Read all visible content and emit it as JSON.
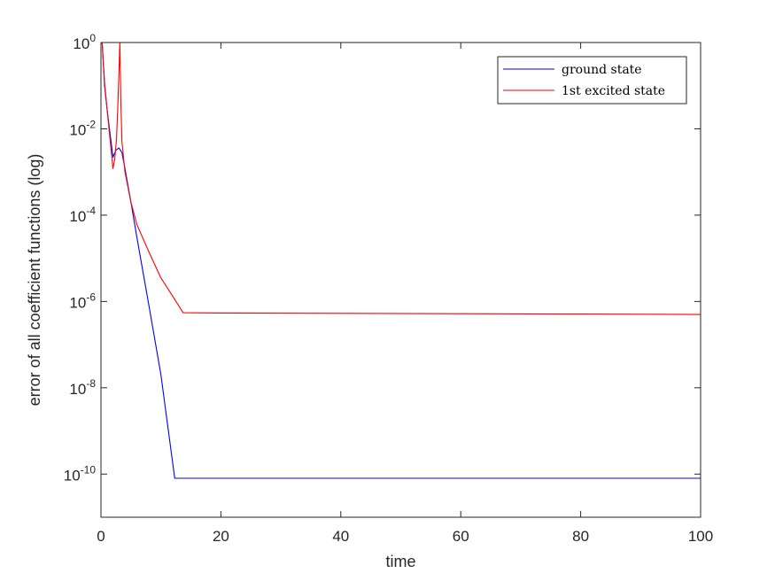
{
  "chart_data": {
    "type": "line",
    "xlabel": "time",
    "ylabel": "error of all coefficient functions (log)",
    "xlim": [
      0,
      100
    ],
    "ylim": [
      1e-11,
      1
    ],
    "yscale": "log",
    "grid": false,
    "legend_position": "top-right",
    "x_ticks": [
      {
        "value": 0,
        "label": "0"
      },
      {
        "value": 20,
        "label": "20"
      },
      {
        "value": 40,
        "label": "40"
      },
      {
        "value": 60,
        "label": "60"
      },
      {
        "value": 80,
        "label": "80"
      },
      {
        "value": 100,
        "label": "100"
      }
    ],
    "y_ticks": [
      {
        "value": 1,
        "base": "10",
        "exp": "0"
      },
      {
        "value": 0.01,
        "base": "10",
        "exp": "-2"
      },
      {
        "value": 0.0001,
        "base": "10",
        "exp": "-4"
      },
      {
        "value": 1e-06,
        "base": "10",
        "exp": "-6"
      },
      {
        "value": 1e-08,
        "base": "10",
        "exp": "-8"
      },
      {
        "value": 1e-10,
        "base": "10",
        "exp": "-10"
      }
    ],
    "series": [
      {
        "name": "ground state",
        "color": "#0000ff",
        "x": [
          0.2,
          0.6,
          1.0,
          1.5,
          2.0,
          2.5,
          3.0,
          3.5,
          4.0,
          5.0,
          6.0,
          8.0,
          10.0,
          12.3,
          20.0,
          40.0,
          60.0,
          80.0,
          100.0
        ],
        "y": [
          1.0,
          0.1,
          0.03,
          0.008,
          0.0022,
          0.0032,
          0.0036,
          0.0028,
          0.0012,
          0.0002,
          3e-05,
          8e-07,
          2e-08,
          8e-11,
          8e-11,
          8e-11,
          8e-11,
          8e-11,
          8e-11
        ]
      },
      {
        "name": "1st excited state",
        "color": "#ff0000",
        "x": [
          0.2,
          0.6,
          1.0,
          1.5,
          2.0,
          2.3,
          2.6,
          2.8,
          3.0,
          3.15,
          3.3,
          3.5,
          4.0,
          5.0,
          6.0,
          8.0,
          10.0,
          12.0,
          13.7,
          20.0,
          40.0,
          60.0,
          80.0,
          100.0
        ],
        "y": [
          1.0,
          0.12,
          0.03,
          0.006,
          0.0012,
          0.002,
          0.006,
          0.03,
          0.2,
          1.0,
          0.05,
          0.005,
          0.001,
          0.0002,
          6e-05,
          1.4e-05,
          3.5e-06,
          1.3e-06,
          5.5e-07,
          5.4e-07,
          5.3e-07,
          5.2e-07,
          5.1e-07,
          5e-07
        ]
      }
    ]
  }
}
